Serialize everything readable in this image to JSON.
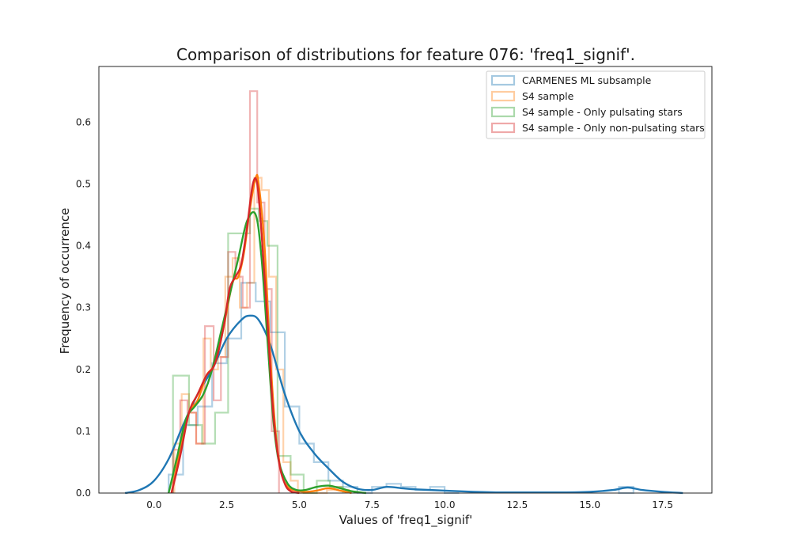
{
  "chart_data": {
    "type": "histogram",
    "title": "Comparison of distributions for feature 076: 'freq1_signif'.",
    "xlabel": "Values of 'freq1_signif'",
    "ylabel": "Frequency of occurrence",
    "xlim": [
      -1.9,
      19.2
    ],
    "ylim": [
      0,
      0.69
    ],
    "xticks": [
      0.0,
      2.5,
      5.0,
      7.5,
      10.0,
      12.5,
      15.0,
      17.5
    ],
    "xtick_labels": [
      "0.0",
      "2.5",
      "5.0",
      "7.5",
      "10.0",
      "12.5",
      "15.0",
      "17.5"
    ],
    "yticks": [
      0.0,
      0.1,
      0.2,
      0.3,
      0.4,
      0.5,
      0.6
    ],
    "ytick_labels": [
      "0.0",
      "0.1",
      "0.2",
      "0.3",
      "0.4",
      "0.5",
      "0.6"
    ],
    "grid": false,
    "legend_position": "upper-right",
    "series": [
      {
        "name": "CARMENES ML subsample",
        "color": "#1f77b4",
        "histogram": {
          "edges": [
            0.5,
            1.0,
            1.5,
            2.0,
            2.5,
            3.0,
            3.5,
            4.0,
            4.5,
            5.0,
            5.5,
            6.0,
            6.5,
            7.0,
            7.5,
            8.0,
            8.5,
            9.0,
            9.5,
            10.0,
            10.5
          ],
          "heights": [
            0.03,
            0.11,
            0.14,
            0.21,
            0.25,
            0.34,
            0.31,
            0.26,
            0.14,
            0.08,
            0.05,
            0.02,
            0.01,
            0.0,
            0.01,
            0.015,
            0.01,
            0.005,
            0.01,
            0.0
          ]
        },
        "extra_bins": [
          {
            "x0": 16.0,
            "x1": 16.5,
            "height": 0.01
          }
        ],
        "kde": {
          "x": [
            -1.0,
            -0.5,
            0.0,
            0.5,
            1.0,
            1.5,
            2.0,
            2.5,
            3.0,
            3.3,
            3.6,
            4.0,
            4.5,
            5.0,
            5.5,
            6.0,
            6.5,
            7.0,
            7.5,
            8.0,
            8.5,
            9.0,
            10.0,
            11.0,
            12.0,
            13.0,
            14.0,
            15.0,
            15.8,
            16.3,
            16.8,
            17.5,
            18.2
          ],
          "y": [
            0.0,
            0.005,
            0.02,
            0.055,
            0.11,
            0.16,
            0.2,
            0.25,
            0.28,
            0.287,
            0.28,
            0.24,
            0.16,
            0.1,
            0.065,
            0.04,
            0.018,
            0.007,
            0.005,
            0.01,
            0.008,
            0.006,
            0.004,
            0.002,
            0.001,
            0.001,
            0.001,
            0.002,
            0.005,
            0.009,
            0.005,
            0.002,
            0.0
          ]
        }
      },
      {
        "name": "S4 sample",
        "color": "#ff7f0e",
        "histogram": {
          "edges": [
            0.7,
            0.95,
            1.2,
            1.45,
            1.7,
            1.95,
            2.2,
            2.45,
            2.7,
            2.95,
            3.2,
            3.45,
            3.7,
            3.95,
            4.2,
            4.45,
            4.7,
            4.95,
            5.2,
            5.45,
            5.7,
            5.95,
            6.2,
            6.45,
            6.7
          ],
          "heights": [
            0.08,
            0.16,
            0.13,
            0.08,
            0.25,
            0.2,
            0.22,
            0.35,
            0.38,
            0.3,
            0.34,
            0.51,
            0.49,
            0.35,
            0.2,
            0.05,
            0.02,
            0.0,
            0.0,
            0.0,
            0.0,
            0.005,
            0.01,
            0.005
          ]
        },
        "kde": {
          "x": [
            0.6,
            0.9,
            1.2,
            1.5,
            1.8,
            2.1,
            2.4,
            2.7,
            2.9,
            3.1,
            3.3,
            3.5,
            3.6,
            3.8,
            4.0,
            4.2,
            4.4,
            4.6,
            4.8,
            5.2,
            5.6,
            6.0,
            6.4,
            6.8
          ],
          "y": [
            0.0,
            0.07,
            0.13,
            0.15,
            0.19,
            0.21,
            0.27,
            0.34,
            0.35,
            0.39,
            0.46,
            0.51,
            0.5,
            0.4,
            0.22,
            0.09,
            0.03,
            0.01,
            0.005,
            0.002,
            0.004,
            0.008,
            0.004,
            0.0
          ]
        }
      },
      {
        "name": "S4 sample - Only pulsating stars",
        "color": "#2ca02c",
        "histogram": {
          "edges": [
            0.65,
            1.2,
            1.65,
            2.1,
            2.55,
            2.9,
            3.3,
            3.6,
            3.9,
            4.25,
            4.7,
            5.15,
            5.6,
            6.05,
            6.5
          ],
          "heights": [
            0.19,
            0.11,
            0.08,
            0.13,
            0.42,
            0.42,
            0.46,
            0.44,
            0.4,
            0.06,
            0.03,
            0.0,
            0.02,
            0.01
          ]
        },
        "kde": {
          "x": [
            0.5,
            0.8,
            1.1,
            1.4,
            1.7,
            2.0,
            2.3,
            2.6,
            2.9,
            3.2,
            3.5,
            3.7,
            3.9,
            4.1,
            4.3,
            4.6,
            4.9,
            5.2,
            5.6,
            6.0,
            6.4,
            6.8,
            7.3
          ],
          "y": [
            0.0,
            0.06,
            0.12,
            0.14,
            0.16,
            0.2,
            0.26,
            0.32,
            0.38,
            0.44,
            0.45,
            0.38,
            0.25,
            0.12,
            0.05,
            0.015,
            0.005,
            0.005,
            0.01,
            0.012,
            0.008,
            0.003,
            0.0
          ]
        }
      },
      {
        "name": "S4 sample - Only non-pulsating stars",
        "color": "#d62728",
        "histogram": {
          "edges": [
            0.65,
            0.9,
            1.15,
            1.45,
            1.75,
            2.05,
            2.3,
            2.55,
            2.8,
            3.05,
            3.3,
            3.55,
            3.8,
            4.05,
            4.3
          ],
          "heights": [
            0.07,
            0.15,
            0.13,
            0.08,
            0.27,
            0.15,
            0.22,
            0.39,
            0.35,
            0.3,
            0.65,
            0.47,
            0.33,
            0.1
          ]
        },
        "kde": {
          "x": [
            0.6,
            0.9,
            1.2,
            1.5,
            1.8,
            2.1,
            2.4,
            2.6,
            2.8,
            3.0,
            3.2,
            3.4,
            3.55,
            3.7,
            3.9,
            4.1,
            4.3,
            4.5,
            4.7,
            5.0
          ],
          "y": [
            0.0,
            0.06,
            0.13,
            0.16,
            0.19,
            0.21,
            0.27,
            0.33,
            0.35,
            0.37,
            0.43,
            0.5,
            0.5,
            0.42,
            0.28,
            0.13,
            0.05,
            0.015,
            0.003,
            0.0
          ]
        }
      }
    ]
  }
}
